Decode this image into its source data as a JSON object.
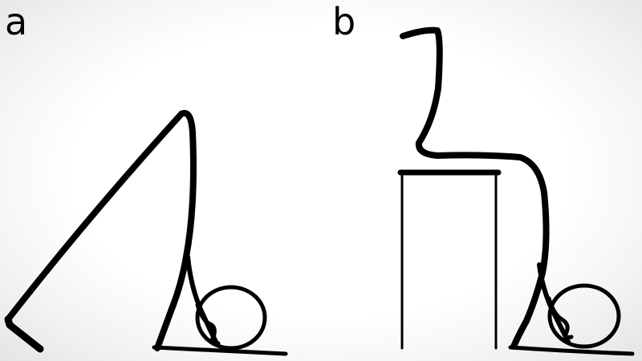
{
  "panels": [
    {
      "label": "a"
    },
    {
      "label": "b"
    }
  ],
  "colors": {
    "ink": "#000000",
    "background": "#ffffff"
  }
}
